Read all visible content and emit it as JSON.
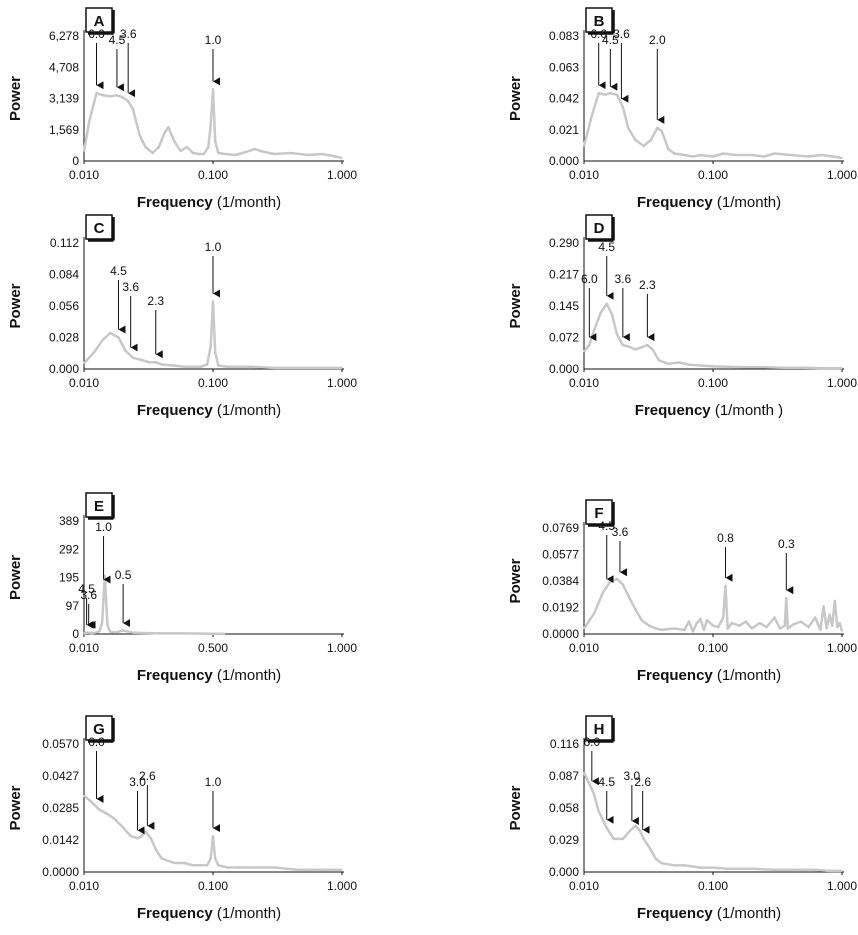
{
  "chart_data": [
    {
      "id": "A",
      "type": "line",
      "panel_label": "A",
      "ylabel": "Power",
      "xlabel": "Frequency (1/month)",
      "xlabel_bold": "Frequency",
      "xlabel_rest": " (1/month)",
      "x_scale": "log",
      "xlim": [
        0.01,
        1.0
      ],
      "x_ticks": [
        "0.010",
        "0.100",
        "1.000"
      ],
      "ylim": [
        0,
        6278
      ],
      "y_ticks": [
        "0",
        "1,569",
        "3,139",
        "4,708",
        "6,278"
      ],
      "series": [
        {
          "x": [
            0.01,
            0.011,
            0.0125,
            0.014,
            0.016,
            0.018,
            0.02,
            0.022,
            0.024,
            0.027,
            0.03,
            0.034,
            0.038,
            0.042,
            0.045,
            0.05,
            0.056,
            0.063,
            0.07,
            0.078,
            0.085,
            0.092,
            0.096,
            0.1,
            0.104,
            0.11,
            0.125,
            0.15,
            0.18,
            0.21,
            0.25,
            0.3,
            0.4,
            0.55,
            0.7,
            0.85,
            1.0
          ],
          "values": [
            500,
            2000,
            3400,
            3300,
            3250,
            3300,
            3200,
            3000,
            2600,
            1300,
            700,
            400,
            700,
            1400,
            1700,
            1000,
            500,
            700,
            400,
            350,
            350,
            700,
            1800,
            3600,
            1000,
            400,
            350,
            300,
            450,
            600,
            450,
            350,
            400,
            300,
            350,
            250,
            150
          ]
        }
      ],
      "annotations": [
        {
          "label": "6.0",
          "x": 0.0125,
          "y": 3400
        },
        {
          "label": "4.5",
          "x": 0.018,
          "y": 3300
        },
        {
          "label": "3.6",
          "x": 0.022,
          "y": 3000
        },
        {
          "label": "1.0",
          "x": 0.1,
          "y": 3600
        }
      ]
    },
    {
      "id": "B",
      "type": "line",
      "panel_label": "B",
      "ylabel": "Power",
      "xlabel": "Frequency (1/month)",
      "xlabel_bold": "Frequency",
      "xlabel_rest": " (1/month)",
      "x_scale": "log",
      "xlim": [
        0.01,
        1.0
      ],
      "x_ticks": [
        "0.010",
        "0.100",
        "1.000"
      ],
      "ylim": [
        0,
        0.083
      ],
      "y_ticks": [
        "0.000",
        "0.021",
        "0.042",
        "0.063",
        "0.083"
      ],
      "series": [
        {
          "x": [
            0.01,
            0.0115,
            0.013,
            0.0145,
            0.016,
            0.018,
            0.02,
            0.022,
            0.025,
            0.029,
            0.033,
            0.037,
            0.04,
            0.045,
            0.05,
            0.06,
            0.07,
            0.08,
            0.1,
            0.12,
            0.15,
            0.2,
            0.25,
            0.3,
            0.4,
            0.55,
            0.7,
            0.85,
            1.0
          ],
          "values": [
            0.01,
            0.03,
            0.045,
            0.044,
            0.045,
            0.044,
            0.036,
            0.022,
            0.014,
            0.01,
            0.014,
            0.022,
            0.02,
            0.008,
            0.005,
            0.004,
            0.003,
            0.004,
            0.003,
            0.005,
            0.004,
            0.004,
            0.003,
            0.005,
            0.004,
            0.003,
            0.004,
            0.003,
            0.002
          ]
        }
      ],
      "annotations": [
        {
          "label": "6.0",
          "x": 0.013,
          "y": 0.045
        },
        {
          "label": "4.5",
          "x": 0.016,
          "y": 0.044
        },
        {
          "label": "3.6",
          "x": 0.0195,
          "y": 0.036
        },
        {
          "label": "2.0",
          "x": 0.037,
          "y": 0.022
        }
      ]
    },
    {
      "id": "C",
      "type": "line",
      "panel_label": "C",
      "ylabel": "Power",
      "xlabel": "Frequency (1/month)",
      "xlabel_bold": "Frequency",
      "xlabel_rest": " (1/month)",
      "x_scale": "log",
      "xlim": [
        0.01,
        1.0
      ],
      "x_ticks": [
        "0.010",
        "0.100",
        "1.000"
      ],
      "ylim": [
        0,
        0.112
      ],
      "y_ticks": [
        "0.000",
        "0.028",
        "0.056",
        "0.084",
        "0.112"
      ],
      "series": [
        {
          "x": [
            0.01,
            0.012,
            0.014,
            0.016,
            0.0185,
            0.021,
            0.024,
            0.028,
            0.032,
            0.036,
            0.04,
            0.05,
            0.06,
            0.07,
            0.08,
            0.09,
            0.096,
            0.1,
            0.104,
            0.11,
            0.13,
            0.16,
            0.2,
            0.3,
            0.45,
            0.6,
            0.8,
            1.0
          ],
          "values": [
            0.005,
            0.015,
            0.026,
            0.032,
            0.028,
            0.016,
            0.01,
            0.008,
            0.006,
            0.006,
            0.004,
            0.003,
            0.002,
            0.002,
            0.002,
            0.004,
            0.02,
            0.06,
            0.015,
            0.003,
            0.002,
            0.002,
            0.002,
            0.001,
            0.001,
            0.001,
            0.001,
            0.001
          ]
        }
      ],
      "annotations": [
        {
          "label": "4.5",
          "x": 0.0185,
          "y": 0.028
        },
        {
          "label": "3.6",
          "x": 0.023,
          "y": 0.012
        },
        {
          "label": "2.3",
          "x": 0.036,
          "y": 0.006
        },
        {
          "label": "1.0",
          "x": 0.1,
          "y": 0.06
        }
      ]
    },
    {
      "id": "D",
      "type": "line",
      "panel_label": "D",
      "ylabel": "Power",
      "xlabel": "Frequency (1/month )",
      "xlabel_bold": "Frequency",
      "xlabel_rest": " (1/month )",
      "x_scale": "log",
      "xlim": [
        0.01,
        1.0
      ],
      "x_ticks": [
        "0.010",
        "0.100",
        "1.000"
      ],
      "ylim": [
        0,
        0.29
      ],
      "y_ticks": [
        "0.000",
        "0.072",
        "0.145",
        "0.217",
        "0.290"
      ],
      "series": [
        {
          "x": [
            0.01,
            0.011,
            0.012,
            0.0135,
            0.015,
            0.0165,
            0.018,
            0.02,
            0.022,
            0.025,
            0.028,
            0.031,
            0.034,
            0.038,
            0.045,
            0.055,
            0.065,
            0.08,
            0.1,
            0.13,
            0.18,
            0.25,
            0.35,
            0.5,
            0.7,
            1.0
          ],
          "values": [
            0.04,
            0.055,
            0.09,
            0.13,
            0.15,
            0.125,
            0.08,
            0.055,
            0.052,
            0.045,
            0.05,
            0.055,
            0.045,
            0.02,
            0.012,
            0.015,
            0.01,
            0.008,
            0.006,
            0.005,
            0.004,
            0.004,
            0.003,
            0.003,
            0.002,
            0.002
          ]
        }
      ],
      "annotations": [
        {
          "label": "6.0",
          "x": 0.011,
          "y": 0.055
        },
        {
          "label": "4.5",
          "x": 0.015,
          "y": 0.15
        },
        {
          "label": "3.6",
          "x": 0.02,
          "y": 0.055
        },
        {
          "label": "2.3",
          "x": 0.031,
          "y": 0.055
        }
      ]
    },
    {
      "id": "E",
      "type": "line",
      "panel_label": "E",
      "ylabel": "Power",
      "xlabel": "Frequency (1/month)",
      "xlabel_bold": "Frequency",
      "xlabel_rest": " (1/month)",
      "x_scale": "linear",
      "xlim": [
        0.01,
        1.0
      ],
      "x_ticks": [
        "0.010",
        "0.500",
        "1.000"
      ],
      "ylim": [
        0,
        389
      ],
      "y_ticks": [
        "0",
        "97",
        "195",
        "292",
        "389"
      ],
      "series": [
        {
          "x": [
            0.01,
            0.015,
            0.02,
            0.025,
            0.03,
            0.04,
            0.05,
            0.06,
            0.07,
            0.08,
            0.085,
            0.09,
            0.1,
            0.11,
            0.13,
            0.16,
            0.2,
            0.3,
            0.4,
            0.5,
            0.55
          ],
          "values": [
            2,
            3,
            4,
            5,
            4,
            3,
            4,
            6,
            10,
            40,
            120,
            200,
            30,
            8,
            5,
            12,
            4,
            2,
            2,
            1,
            1
          ]
        }
      ],
      "annotations": [
        {
          "label": "4.5",
          "x": 0.02,
          "y": 4
        },
        {
          "label": "3.6",
          "x": 0.028,
          "y": 4
        },
        {
          "label": "1.0",
          "x": 0.085,
          "y": 160
        },
        {
          "label": "0.5",
          "x": 0.16,
          "y": 10
        }
      ]
    },
    {
      "id": "F",
      "type": "line",
      "panel_label": "F",
      "ylabel": "Power",
      "xlabel": "Frequency (1/month)",
      "xlabel_bold": "Frequency",
      "xlabel_rest": " (1/month)",
      "x_scale": "log",
      "xlim": [
        0.01,
        1.0
      ],
      "x_ticks": [
        "0.010",
        "0.100",
        "1.000"
      ],
      "ylim": [
        0,
        0.0769
      ],
      "y_ticks": [
        "0.0000",
        "0.0192",
        "0.0384",
        "0.0577",
        "0.0769"
      ],
      "series": [
        {
          "x": [
            0.01,
            0.012,
            0.014,
            0.016,
            0.018,
            0.02,
            0.022,
            0.025,
            0.028,
            0.032,
            0.036,
            0.04,
            0.05,
            0.06,
            0.065,
            0.07,
            0.075,
            0.08,
            0.085,
            0.09,
            0.1,
            0.11,
            0.12,
            0.125,
            0.13,
            0.14,
            0.16,
            0.18,
            0.2,
            0.23,
            0.26,
            0.3,
            0.33,
            0.36,
            0.37,
            0.38,
            0.42,
            0.48,
            0.55,
            0.62,
            0.68,
            0.72,
            0.76,
            0.8,
            0.84,
            0.88,
            0.92,
            0.96,
            1.0
          ],
          "values": [
            0.004,
            0.015,
            0.03,
            0.038,
            0.04,
            0.036,
            0.028,
            0.018,
            0.01,
            0.006,
            0.004,
            0.003,
            0.004,
            0.003,
            0.009,
            0.002,
            0.008,
            0.011,
            0.003,
            0.01,
            0.006,
            0.005,
            0.012,
            0.035,
            0.004,
            0.008,
            0.006,
            0.009,
            0.004,
            0.008,
            0.005,
            0.012,
            0.004,
            0.006,
            0.026,
            0.004,
            0.007,
            0.009,
            0.005,
            0.012,
            0.003,
            0.02,
            0.004,
            0.014,
            0.006,
            0.024,
            0.005,
            0.008,
            0.002
          ]
        }
      ],
      "annotations": [
        {
          "label": "4.5",
          "x": 0.015,
          "y": 0.034
        },
        {
          "label": "3.6",
          "x": 0.019,
          "y": 0.039
        },
        {
          "label": "0.8",
          "x": 0.125,
          "y": 0.035
        },
        {
          "label": "0.3",
          "x": 0.37,
          "y": 0.026
        }
      ]
    },
    {
      "id": "G",
      "type": "line",
      "panel_label": "G",
      "ylabel": "Power",
      "xlabel": "Frequency (1/month)",
      "xlabel_bold": "Frequency",
      "xlabel_rest": " (1/month)",
      "x_scale": "log",
      "xlim": [
        0.01,
        1.0
      ],
      "x_ticks": [
        "0.010",
        "0.100",
        "1.000"
      ],
      "ylim": [
        0,
        0.057
      ],
      "y_ticks": [
        "0.0000",
        "0.0142",
        "0.0285",
        "0.0427",
        "0.0570"
      ],
      "series": [
        {
          "x": [
            0.01,
            0.011,
            0.012,
            0.013,
            0.015,
            0.017,
            0.02,
            0.023,
            0.026,
            0.028,
            0.03,
            0.033,
            0.036,
            0.04,
            0.05,
            0.06,
            0.07,
            0.08,
            0.09,
            0.096,
            0.1,
            0.104,
            0.11,
            0.13,
            0.16,
            0.2,
            0.3,
            0.45,
            0.6,
            0.8,
            1.0
          ],
          "values": [
            0.034,
            0.032,
            0.03,
            0.028,
            0.026,
            0.024,
            0.02,
            0.016,
            0.015,
            0.016,
            0.018,
            0.015,
            0.01,
            0.006,
            0.004,
            0.004,
            0.003,
            0.003,
            0.003,
            0.006,
            0.016,
            0.006,
            0.003,
            0.002,
            0.002,
            0.002,
            0.002,
            0.001,
            0.001,
            0.001,
            0.001
          ]
        }
      ],
      "annotations": [
        {
          "label": "6.0",
          "x": 0.0125,
          "y": 0.029
        },
        {
          "label": "3.0",
          "x": 0.026,
          "y": 0.015
        },
        {
          "label": "2.6",
          "x": 0.031,
          "y": 0.017
        },
        {
          "label": "1.0",
          "x": 0.1,
          "y": 0.016
        }
      ]
    },
    {
      "id": "H",
      "type": "line",
      "panel_label": "H",
      "ylabel": "Power",
      "xlabel": "Frequency (1/month)",
      "xlabel_bold": "Frequency",
      "xlabel_rest": " (1/month)",
      "x_scale": "log",
      "xlim": [
        0.01,
        1.0
      ],
      "x_ticks": [
        "0.010",
        "0.100",
        "1.000"
      ],
      "ylim": [
        0,
        0.116
      ],
      "y_ticks": [
        "0.000",
        "0.029",
        "0.058",
        "0.087",
        "0.116"
      ],
      "series": [
        {
          "x": [
            0.01,
            0.011,
            0.012,
            0.013,
            0.015,
            0.017,
            0.02,
            0.023,
            0.025,
            0.027,
            0.029,
            0.031,
            0.033,
            0.036,
            0.04,
            0.05,
            0.06,
            0.07,
            0.08,
            0.1,
            0.13,
            0.16,
            0.2,
            0.3,
            0.45,
            0.6,
            0.8,
            1.0
          ],
          "values": [
            0.09,
            0.08,
            0.07,
            0.055,
            0.04,
            0.03,
            0.03,
            0.038,
            0.042,
            0.038,
            0.03,
            0.025,
            0.02,
            0.012,
            0.008,
            0.006,
            0.006,
            0.005,
            0.004,
            0.004,
            0.003,
            0.003,
            0.003,
            0.002,
            0.002,
            0.002,
            0.001,
            0.001
          ]
        }
      ],
      "annotations": [
        {
          "label": "6.0",
          "x": 0.0115,
          "y": 0.075
        },
        {
          "label": "4.5",
          "x": 0.015,
          "y": 0.04
        },
        {
          "label": "3.0",
          "x": 0.0235,
          "y": 0.039
        },
        {
          "label": "2.6",
          "x": 0.0285,
          "y": 0.031
        }
      ]
    }
  ]
}
